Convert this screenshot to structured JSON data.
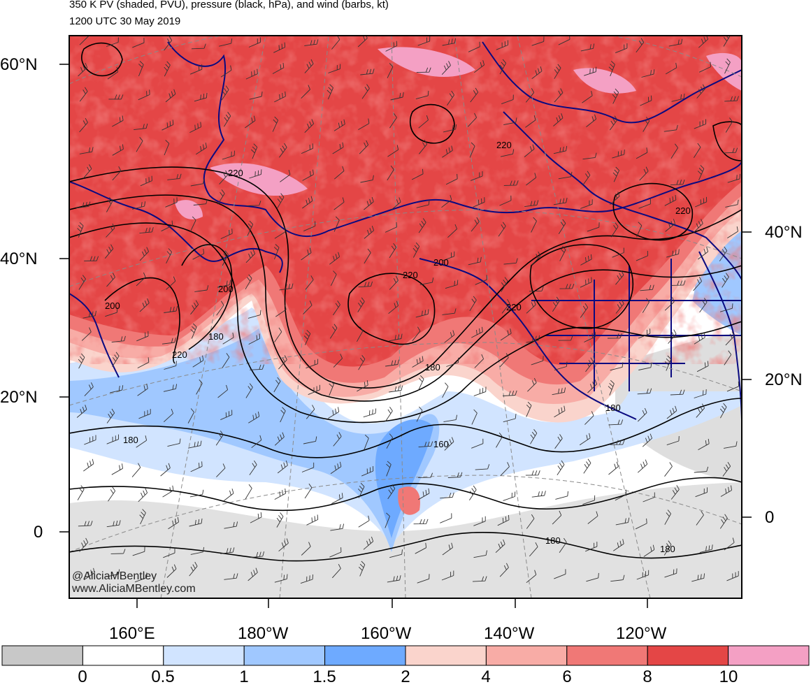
{
  "title_line1": "350 K PV (shaded, PVU), pressure (black, hPa), and wind (barbs, kt)",
  "title_line2": "1200 UTC 30 May 2019",
  "map": {
    "projection": "polar-stereographic (North Pacific)",
    "lat_labels_left": [
      "60°N",
      "40°N",
      "20°N",
      "0"
    ],
    "lat_labels_right": [
      "40°N",
      "20°N",
      "0"
    ],
    "lon_labels": [
      "160°E",
      "180°W",
      "160°W",
      "140°W",
      "120°W"
    ],
    "pressure_contour_labels": [
      "220",
      "220",
      "200",
      "200",
      "220",
      "180",
      "220",
      "200",
      "220",
      "180",
      "220",
      "180",
      "180",
      "160",
      "180",
      "180"
    ],
    "shading_colors": {
      "lt_0": "#c8c8c8",
      "0_0.5": "#ffffff",
      "0.5_1": "#d1e4ff",
      "1_1.5": "#a0c8ff",
      "1.5_2": "#6eaaff",
      "2_4": "#fad4cc",
      "4_6": "#f8aca6",
      "6_8": "#f07876",
      "8_10": "#e44646",
      "gt_10": "#f4a0c4"
    },
    "coastline_color": "#0a0a80",
    "contour_color": "#000000"
  },
  "colorbar": {
    "labels": [
      "0",
      "0.5",
      "1",
      "1.5",
      "2",
      "4",
      "6",
      "8",
      "10"
    ],
    "colors": [
      "#c8c8c8",
      "#ffffff",
      "#d1e4ff",
      "#a0c8ff",
      "#6eaaff",
      "#fad4cc",
      "#f8aca6",
      "#f07876",
      "#e44646",
      "#f4a0c4"
    ]
  },
  "watermark": [
    "@AliciaMBentley",
    "www.AliciaMBentley.com"
  ]
}
